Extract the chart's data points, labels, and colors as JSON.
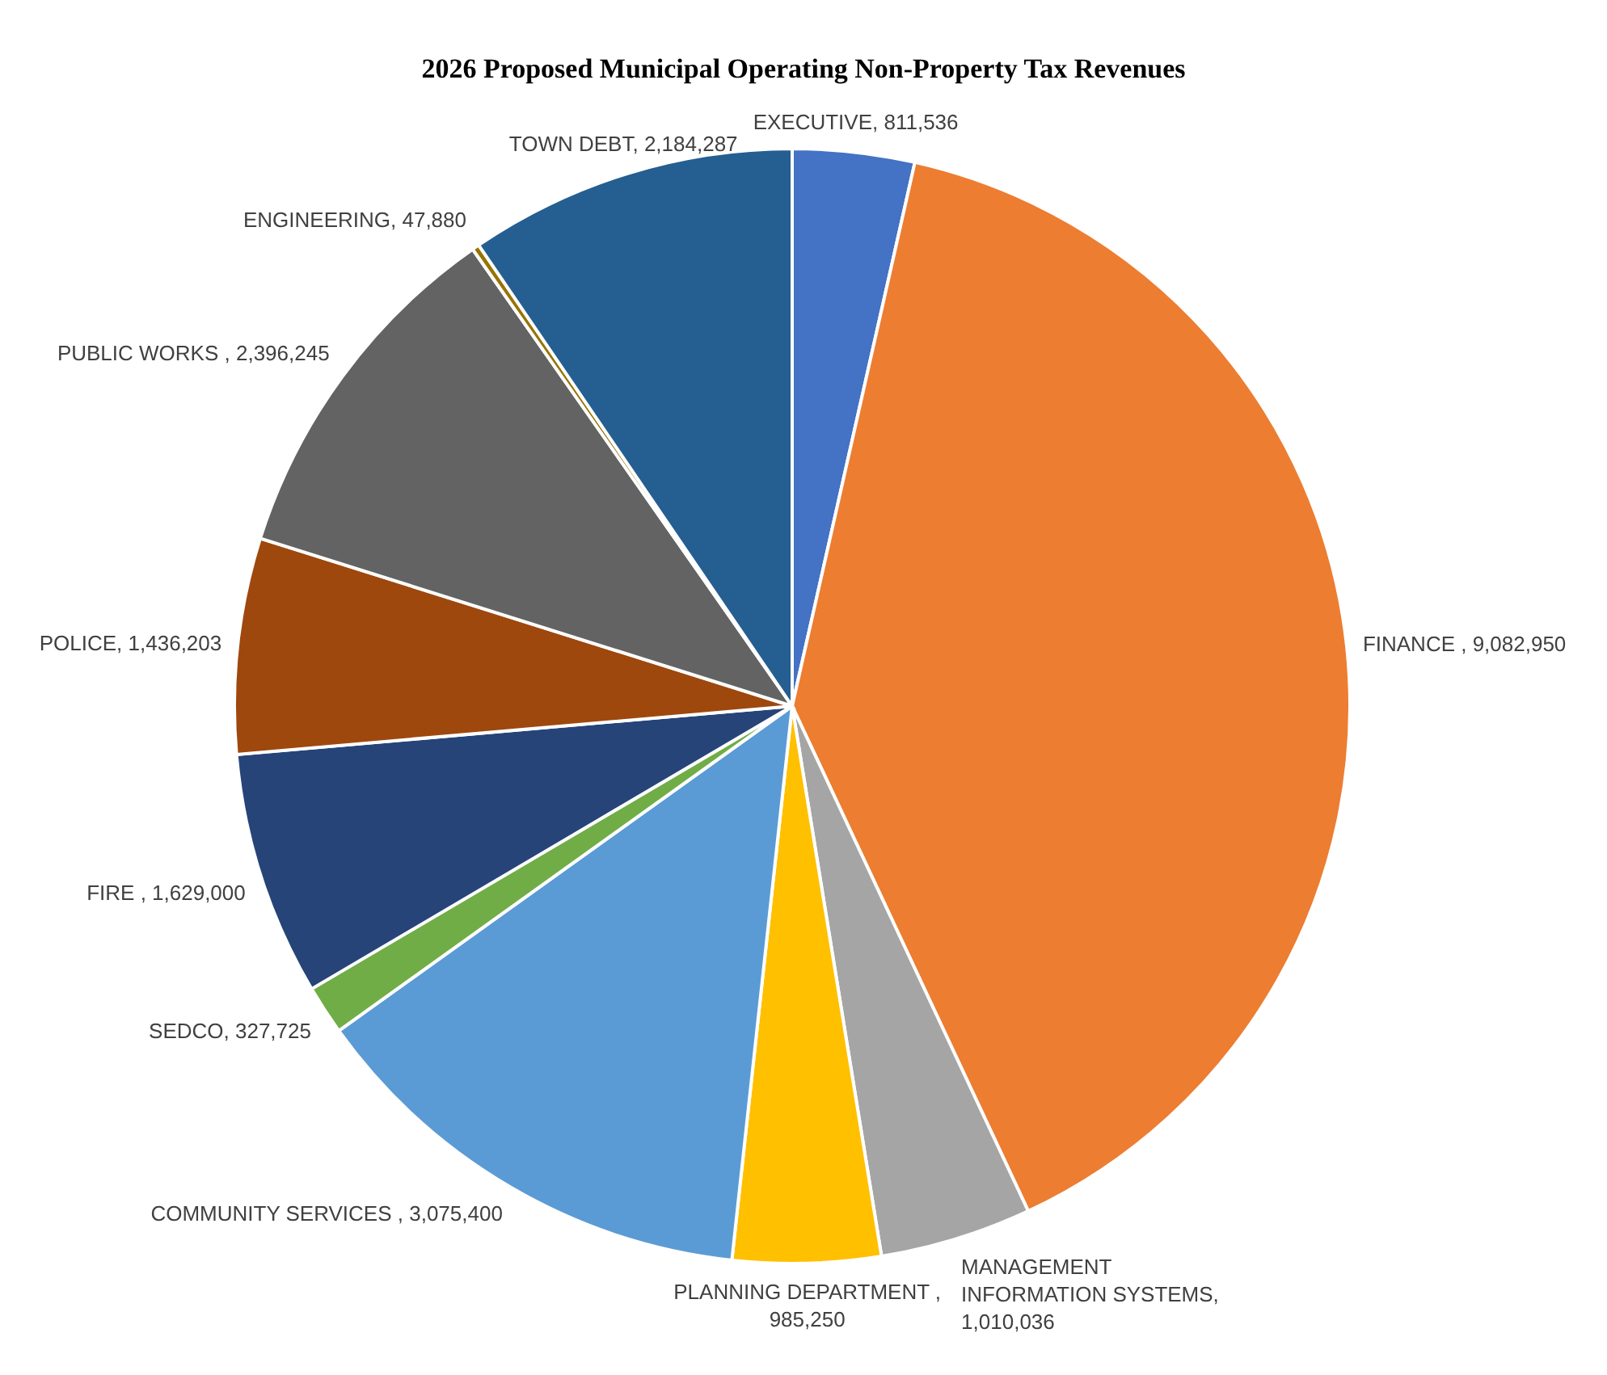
{
  "chart_data": {
    "type": "pie",
    "title": "2026 Proposed Municipal Operating Non-Property Tax Revenues",
    "categories": [
      "EXECUTIVE",
      "FINANCE",
      "MANAGEMENT INFORMATION SYSTEMS",
      "PLANNING DEPARTMENT",
      "COMMUNITY SERVICES",
      "SEDCO",
      "FIRE",
      "POLICE",
      "PUBLIC WORKS",
      "ENGINEERING",
      "TOWN DEBT"
    ],
    "values": [
      811536,
      9082950,
      1010036,
      985250,
      3075400,
      327725,
      1629000,
      1436203,
      2396245,
      47880,
      2184287
    ],
    "value_labels": [
      ", 811,536",
      " , 9,082,950",
      ", 1,010,036",
      " , 985,250",
      " , 3,075,400",
      ", 327,725",
      " , 1,629,000",
      ", 1,436,203",
      " , 2,396,245",
      ", 47,880",
      ", 2,184,287"
    ],
    "colors": [
      "#4472c4",
      "#ed7d31",
      "#a5a5a5",
      "#ffc000",
      "#5b9bd5",
      "#70ad47",
      "#264478",
      "#9e480e",
      "#636363",
      "#997300",
      "#255e91"
    ]
  }
}
